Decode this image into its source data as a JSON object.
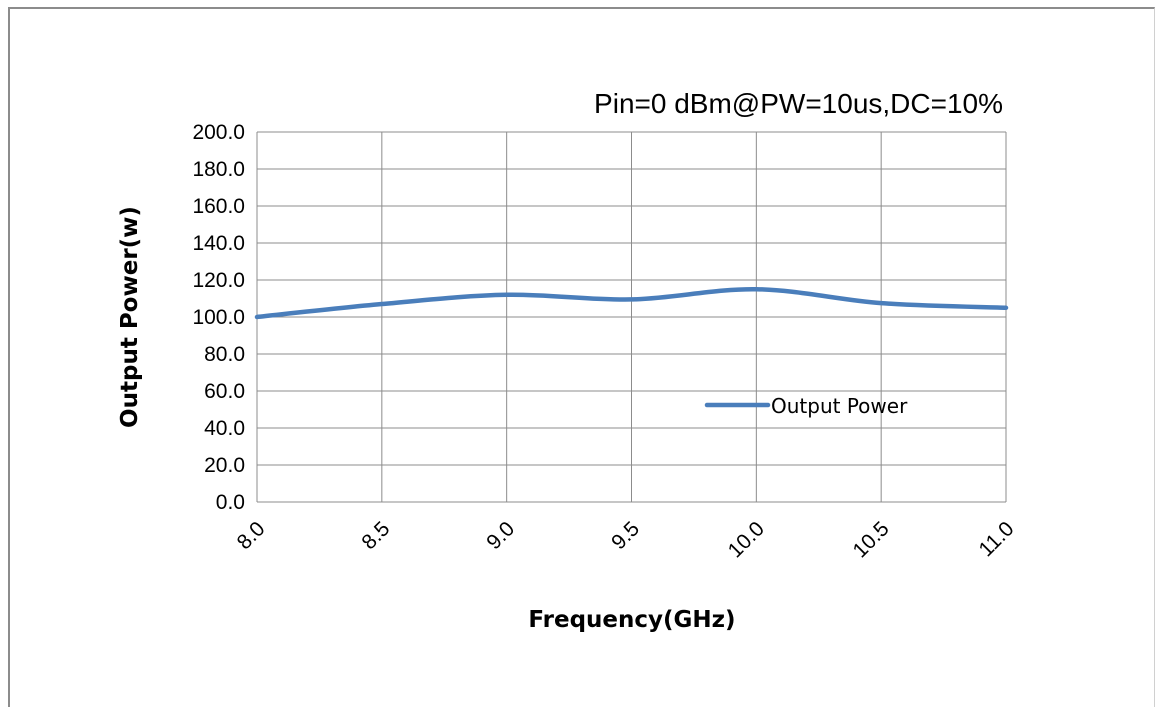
{
  "chart_data": {
    "type": "line",
    "title": "Pin=0 dBm@PW=10us,DC=10%",
    "xlabel": "Frequency(GHz)",
    "ylabel": "Output Power(w)",
    "x": [
      8.0,
      8.5,
      9.0,
      9.5,
      10.0,
      10.5,
      11.0
    ],
    "x_tick_labels": [
      "8.0",
      "8.5",
      "9.0",
      "9.5",
      "10.0",
      "10.5",
      "11.0"
    ],
    "y_tick_labels": [
      "0.0",
      "20.0",
      "40.0",
      "60.0",
      "80.0",
      "100.0",
      "120.0",
      "140.0",
      "160.0",
      "180.0",
      "200.0"
    ],
    "ylim": [
      0,
      200
    ],
    "xlim": [
      8.0,
      11.0
    ],
    "grid": true,
    "legend_position": "right",
    "series": [
      {
        "name": "Output Power",
        "color": "#4a7ebb",
        "values": [
          100,
          107,
          112,
          109.5,
          115,
          107.5,
          105
        ]
      }
    ]
  }
}
